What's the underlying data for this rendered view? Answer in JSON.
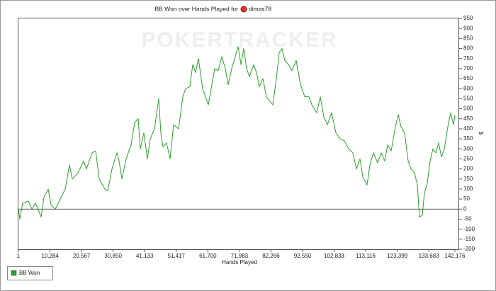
{
  "chart_data": {
    "type": "line",
    "title": "BB Won over Hands Played for",
    "player": "dimas78",
    "watermark": "POKERTRACKER",
    "x_label": "Hands Played",
    "y_label": "$",
    "xlim": [
      1,
      143560
    ],
    "ylim": [
      -200,
      950
    ],
    "xticks": [
      1,
      {
        "value": 10284,
        "label": "10,284"
      },
      {
        "value": 20567,
        "label": "20,567"
      },
      {
        "value": 30850,
        "label": "30,850"
      },
      {
        "value": 41133,
        "label": "41,133"
      },
      {
        "value": 51417,
        "label": "51,417"
      },
      {
        "value": 61700,
        "label": "61,700"
      },
      {
        "value": 71983,
        "label": "71,983"
      },
      {
        "value": 82266,
        "label": "82,266"
      },
      {
        "value": 92550,
        "label": "92,550"
      },
      {
        "value": 102833,
        "label": "102,833"
      },
      {
        "value": 113116,
        "label": "113,116"
      },
      {
        "value": 123399,
        "label": "123,399"
      },
      {
        "value": 133683,
        "label": "133,683"
      },
      {
        "value": 142176,
        "label": "142,176"
      }
    ],
    "yticks": [
      -200,
      -150,
      -100,
      -50,
      0,
      50,
      100,
      150,
      200,
      250,
      300,
      350,
      400,
      450,
      500,
      550,
      600,
      650,
      700,
      750,
      800,
      850,
      900,
      950
    ],
    "zero_line": true,
    "legend": "bottom-left",
    "series": [
      {
        "name": "BB Won",
        "color": "#2ca02c",
        "x": [
          1,
          463,
          1386,
          3232,
          4386,
          5540,
          7386,
          8310,
          9695,
          10618,
          12003,
          13618,
          15234,
          16619,
          17542,
          19388,
          21234,
          22157,
          24003,
          25157,
          26311,
          28157,
          29081,
          30466,
          32081,
          32774,
          33697,
          35082,
          36697,
          37852,
          39006,
          39698,
          40852,
          42006,
          42930,
          44314,
          45699,
          46392,
          47084,
          48238,
          49392,
          50546,
          52162,
          53546,
          54469,
          55854,
          56778,
          57700,
          58623,
          60008,
          60931,
          61854,
          62777,
          63932,
          65086,
          66240,
          67394,
          68317,
          69471,
          70625,
          71548,
          72471,
          73395,
          74318,
          75241,
          76626,
          77549,
          78472,
          79626,
          80780,
          81703,
          82857,
          84011,
          84934,
          85858,
          86781,
          87935,
          89089,
          90474,
          91858,
          93243,
          94628,
          95551,
          97167,
          98321,
          99475,
          100629,
          102014,
          103398,
          104783,
          106168,
          107553,
          108938,
          110092,
          111246,
          112169,
          113554,
          114477,
          115631,
          117016,
          118170,
          119324,
          120247,
          121401,
          122786,
          123709,
          124633,
          125787,
          126941,
          127864,
          129018,
          129941,
          130634,
          131557,
          132250,
          133173,
          134096,
          135020,
          135943,
          136866,
          137789,
          138712,
          139866,
          140789,
          141712,
          142176
        ],
        "values": [
          0,
          -50,
          30,
          40,
          0,
          30,
          -40,
          60,
          100,
          20,
          0,
          50,
          100,
          220,
          150,
          180,
          240,
          200,
          280,
          290,
          150,
          100,
          90,
          200,
          280,
          240,
          150,
          250,
          320,
          430,
          450,
          300,
          380,
          250,
          350,
          400,
          550,
          380,
          310,
          330,
          250,
          420,
          400,
          560,
          600,
          610,
          720,
          680,
          750,
          600,
          560,
          520,
          600,
          700,
          690,
          760,
          700,
          620,
          700,
          760,
          810,
          720,
          800,
          700,
          660,
          720,
          680,
          610,
          650,
          560,
          540,
          520,
          650,
          780,
          800,
          740,
          720,
          690,
          740,
          620,
          560,
          560,
          520,
          480,
          560,
          460,
          420,
          480,
          380,
          350,
          340,
          300,
          280,
          200,
          250,
          160,
          120,
          220,
          280,
          230,
          280,
          240,
          320,
          290,
          410,
          470,
          410,
          380,
          240,
          200,
          180,
          120,
          -40,
          -30,
          80,
          130,
          240,
          300,
          280,
          330,
          260,
          300,
          410,
          480,
          420,
          470
        ]
      }
    ]
  }
}
